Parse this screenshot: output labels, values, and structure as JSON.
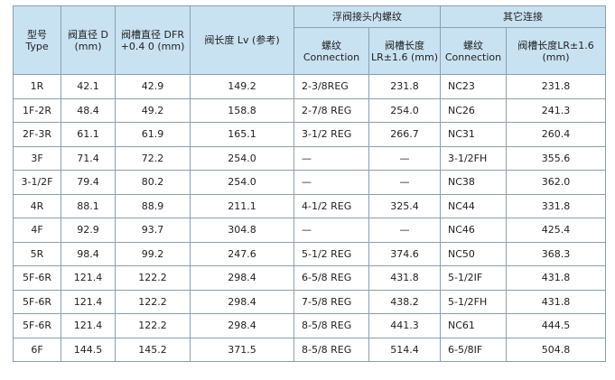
{
  "table": {
    "header": {
      "type": "型号 Type",
      "d": "阀直径 D (mm)",
      "dfr": "阀槽直径 DFR +0.4 0 (mm)",
      "lv": "阀长度 Lv (参考)",
      "group1": "浮阀接头内螺纹",
      "group2": "其它连接",
      "conn1": "螺纹 Connection",
      "lr1": "阀槽长度 LR±1.6 (mm)",
      "conn2": "螺纹 Connection",
      "lr2": "阀槽长度LR±1.6 (mm)"
    },
    "rows": [
      [
        "1R",
        "42.1",
        "42.9",
        "149.2",
        "2-3/8REG",
        "231.8",
        "NC23",
        "231.8"
      ],
      [
        "1F-2R",
        "48.4",
        "49.2",
        "158.8",
        "2-7/8 REG",
        "254.0",
        "NC26",
        "241.3"
      ],
      [
        "2F-3R",
        "61.1",
        "61.9",
        "165.1",
        "3-1/2 REG",
        "266.7",
        "NC31",
        "260.4"
      ],
      [
        "3F",
        "71.4",
        "72.2",
        "254.0",
        "—",
        "—",
        "3-1/2FH",
        "355.6"
      ],
      [
        "3-1/2F",
        "79.4",
        "80.2",
        "254.0",
        "—",
        "—",
        "NC38",
        "362.0"
      ],
      [
        "4R",
        "88.1",
        "88.9",
        "211.1",
        "4-1/2 REG",
        "325.4",
        "NC44",
        "331.8"
      ],
      [
        "4F",
        "92.9",
        "93.7",
        "304.8",
        "—",
        "—",
        "NC46",
        "425.4"
      ],
      [
        "5R",
        "98.4",
        "99.2",
        "247.6",
        "5-1/2 REG",
        "374.6",
        "NC50",
        "368.3"
      ],
      [
        "5F-6R",
        "121.4",
        "122.2",
        "298.4",
        "6-5/8 REG",
        "431.8",
        "5-1/2IF",
        "431.8"
      ],
      [
        "5F-6R",
        "121.4",
        "122.2",
        "298.4",
        "7-5/8 REG",
        "438.2",
        "5-1/2FH",
        "431.8"
      ],
      [
        "5F-6R",
        "121.4",
        "122.2",
        "298.4",
        "8-5/8 REG",
        "441.3",
        "NC61",
        "444.5"
      ],
      [
        "6F",
        "144.5",
        "145.2",
        "371.5",
        "8-5/8 REG",
        "514.4",
        "6-5/8IF",
        "504.8"
      ]
    ]
  }
}
